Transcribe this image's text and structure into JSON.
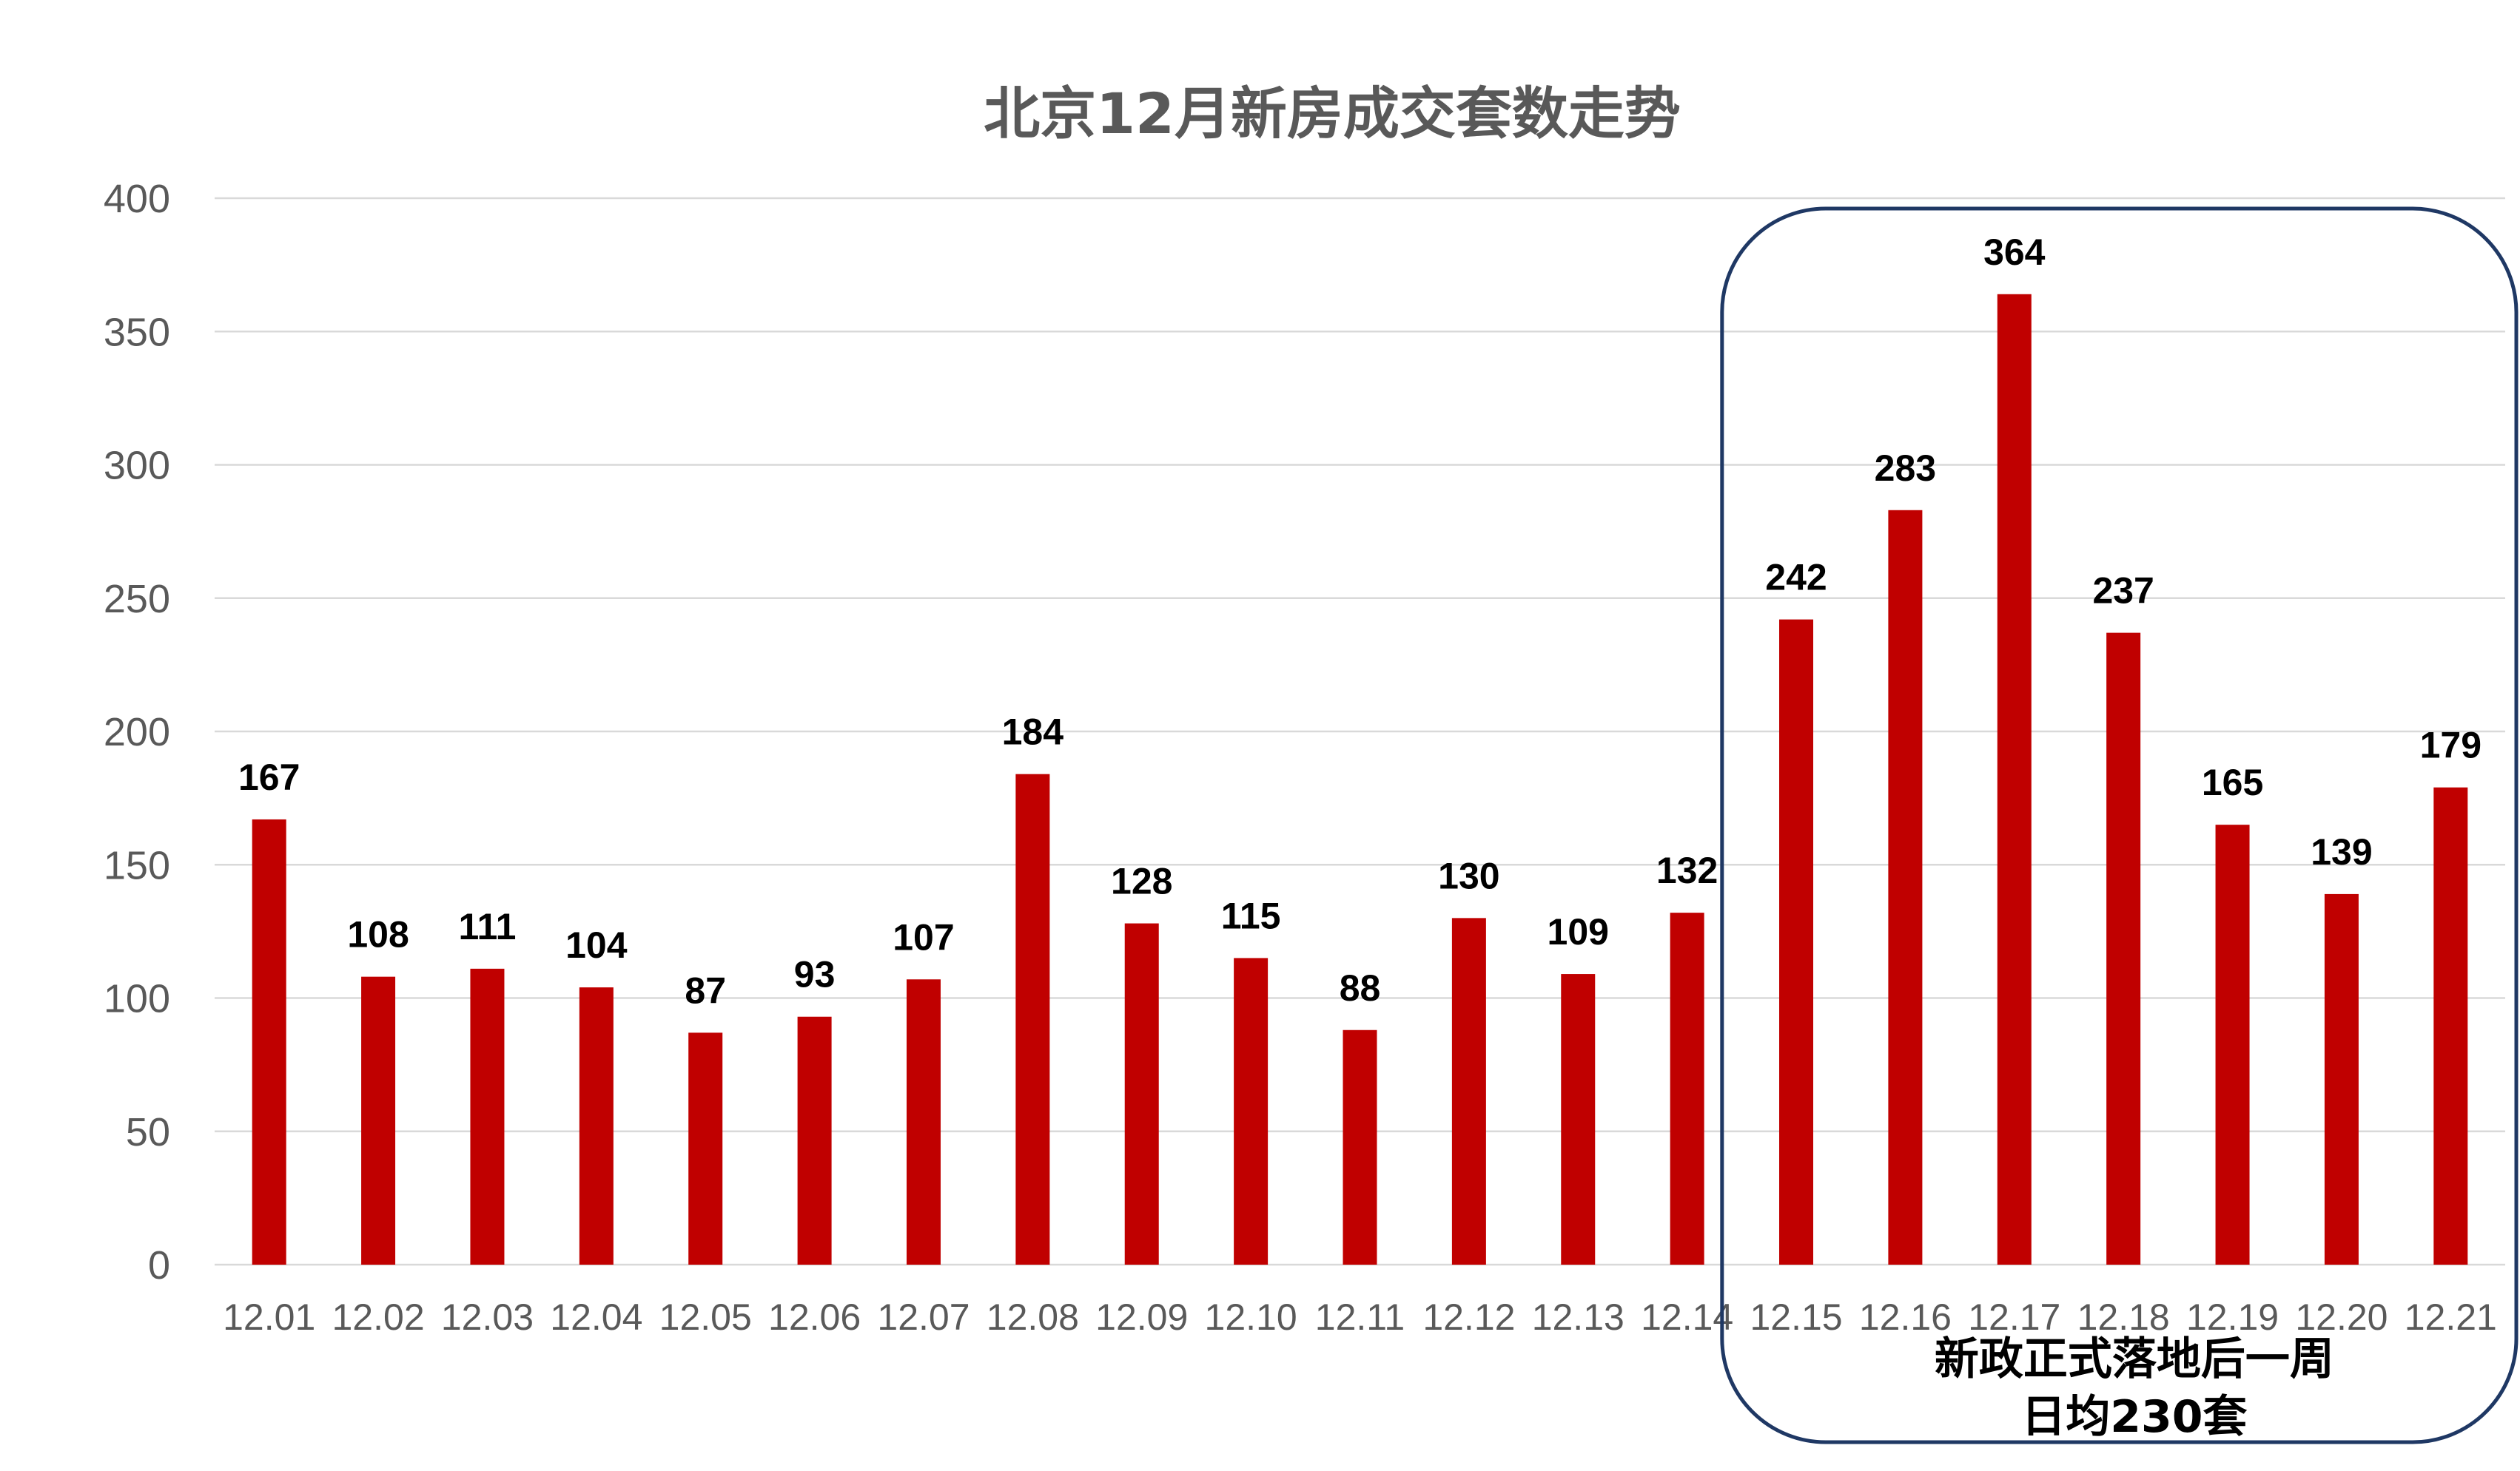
{
  "chart_data": {
    "type": "bar",
    "title": "北京12月新房成交套数走势",
    "categories": [
      "12.01",
      "12.02",
      "12.03",
      "12.04",
      "12.05",
      "12.06",
      "12.07",
      "12.08",
      "12.09",
      "12.10",
      "12.11",
      "12.12",
      "12.13",
      "12.14",
      "12.15",
      "12.16",
      "12.17",
      "12.18",
      "12.19",
      "12.20",
      "12.21"
    ],
    "values": [
      167,
      108,
      111,
      104,
      87,
      93,
      107,
      184,
      128,
      115,
      88,
      130,
      109,
      132,
      242,
      283,
      364,
      237,
      165,
      139,
      179
    ],
    "ylim": [
      0,
      400
    ],
    "yticks": [
      0,
      50,
      100,
      150,
      200,
      250,
      300,
      350,
      400
    ],
    "grid": true,
    "bar_color": "#c00000",
    "annotation": {
      "line1": "新政正式落地后一周",
      "line2": "日均230套",
      "covers_categories": [
        "12.15",
        "12.21"
      ],
      "border_color": "#1f3864"
    }
  }
}
